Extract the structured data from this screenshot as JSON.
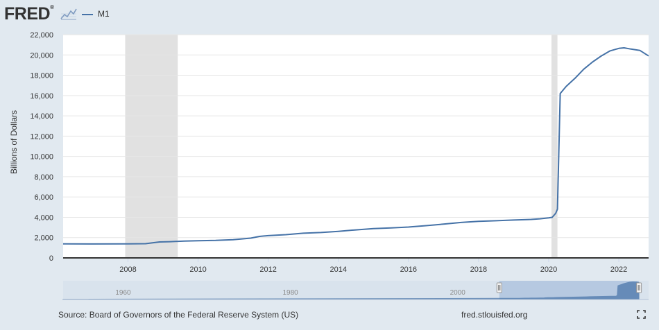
{
  "brand": {
    "logo_text": "FRED",
    "logo_registered": "®"
  },
  "footer": {
    "source": "Source: Board of Governors of the Federal Reserve System (US)",
    "url": "fred.stlouisfed.org"
  },
  "icons": {
    "expand": "fullscreen-icon",
    "logo_mark": "line-graph-icon"
  },
  "colors": {
    "background": "#e1e9f0",
    "plot_bg": "#ffffff",
    "series": "#4572a7",
    "recession": "#e1e1e1",
    "navigator_fill": "#a9c0dc"
  },
  "chart_data": {
    "type": "line",
    "title": "",
    "xlabel": "",
    "ylabel": "Billions of Dollars",
    "x_range": [
      2006.15,
      2022.85
    ],
    "ylim": [
      0,
      22000
    ],
    "yticks": [
      0,
      2000,
      4000,
      6000,
      8000,
      10000,
      12000,
      14000,
      16000,
      18000,
      20000,
      22000
    ],
    "ytick_labels": [
      "0",
      "2,000",
      "4,000",
      "6,000",
      "8,000",
      "10,000",
      "12,000",
      "14,000",
      "16,000",
      "18,000",
      "20,000",
      "22,000"
    ],
    "xticks": [
      2008,
      2010,
      2012,
      2014,
      2016,
      2018,
      2020,
      2022
    ],
    "xtick_labels": [
      "2008",
      "2010",
      "2012",
      "2014",
      "2016",
      "2018",
      "2020",
      "2022"
    ],
    "grid": true,
    "recessions": [
      [
        2007.92,
        2009.42
      ],
      [
        2020.08,
        2020.25
      ]
    ],
    "series": [
      {
        "name": "M1",
        "x": [
          2006.15,
          2007.0,
          2008.0,
          2008.5,
          2008.9,
          2009.2,
          2009.6,
          2010.0,
          2010.5,
          2011.0,
          2011.5,
          2011.75,
          2012.0,
          2012.5,
          2013.0,
          2013.5,
          2014.0,
          2014.5,
          2015.0,
          2015.5,
          2016.0,
          2016.5,
          2017.0,
          2017.5,
          2018.0,
          2018.5,
          2019.0,
          2019.5,
          2019.75,
          2020.0,
          2020.1,
          2020.2,
          2020.25,
          2020.33,
          2020.5,
          2020.75,
          2021.0,
          2021.25,
          2021.5,
          2021.75,
          2022.0,
          2022.15,
          2022.35,
          2022.6,
          2022.85
        ],
        "values": [
          1390,
          1370,
          1380,
          1400,
          1570,
          1600,
          1660,
          1690,
          1720,
          1800,
          1950,
          2120,
          2190,
          2290,
          2430,
          2500,
          2620,
          2760,
          2880,
          2960,
          3040,
          3180,
          3330,
          3490,
          3600,
          3660,
          3730,
          3790,
          3850,
          3950,
          4000,
          4400,
          4800,
          16200,
          16900,
          17700,
          18600,
          19300,
          19900,
          20400,
          20650,
          20700,
          20580,
          20450,
          19900
        ]
      }
    ],
    "navigator": {
      "x_range": [
        1954,
        2024
      ],
      "tick_labels": [
        "1960",
        "1980",
        "2000"
      ],
      "tick_values": [
        1960,
        1980,
        2000
      ],
      "selected_range": [
        2006.15,
        2022.85
      ]
    }
  }
}
